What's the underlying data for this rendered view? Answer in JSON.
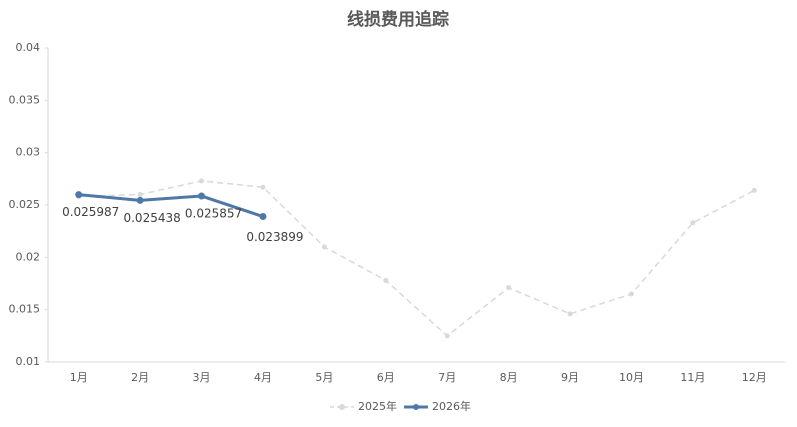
{
  "chart_data": {
    "type": "line",
    "title": "线损费用追踪",
    "categories": [
      "1月",
      "2月",
      "3月",
      "4月",
      "5月",
      "6月",
      "7月",
      "8月",
      "9月",
      "10月",
      "11月",
      "12月"
    ],
    "series": [
      {
        "name": "2025年",
        "color": "#d9d9d9",
        "dashed": true,
        "values": [
          0.0258,
          0.026,
          0.0273,
          0.0267,
          0.021,
          0.0178,
          0.0125,
          0.0171,
          0.0146,
          0.0165,
          0.0233,
          0.0264
        ]
      },
      {
        "name": "2026年",
        "color": "#4e79a7",
        "data_labels": true,
        "values": [
          0.025987,
          0.025438,
          0.025857,
          0.023899,
          null,
          null,
          null,
          null,
          null,
          null,
          null,
          null
        ]
      }
    ],
    "ylim": [
      0.01,
      0.04
    ],
    "yticks": [
      0.01,
      0.015,
      0.02,
      0.025,
      0.03,
      0.035,
      0.04
    ],
    "grid": false,
    "legend": "bottom"
  }
}
